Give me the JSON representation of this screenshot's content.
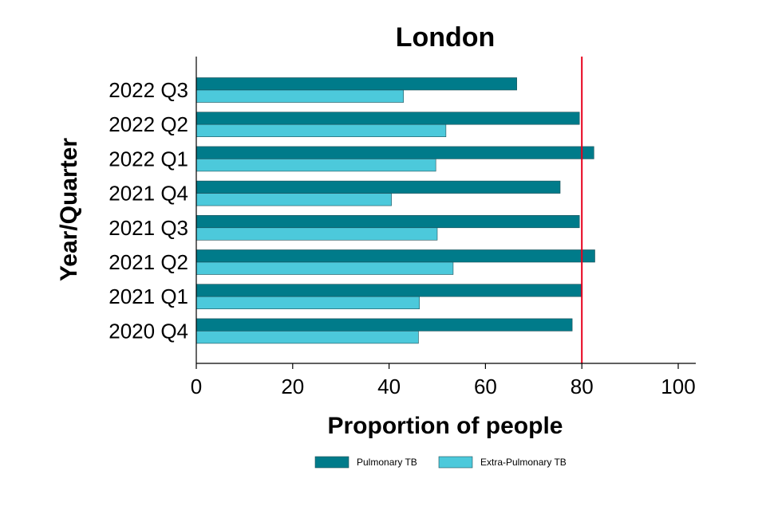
{
  "chart_data": {
    "type": "bar",
    "orientation": "horizontal",
    "title": "London",
    "xlabel": "Proportion of people",
    "ylabel": "Year/Quarter",
    "categories": [
      "2022 Q3",
      "2022 Q2",
      "2022 Q1",
      "2021 Q4",
      "2021 Q3",
      "2021 Q2",
      "2021 Q1",
      "2020 Q4"
    ],
    "series": [
      {
        "name": "Pulmonary TB",
        "color": "#007B8A",
        "values": [
          66.5,
          79.5,
          82.5,
          75.5,
          79.5,
          82.7,
          80.0,
          78.0
        ]
      },
      {
        "name": "Extra-Pulmonary TB",
        "color": "#4CC9DB",
        "values": [
          43.0,
          51.8,
          49.7,
          40.5,
          50.0,
          53.3,
          46.3,
          46.1
        ]
      }
    ],
    "xlim": [
      0,
      100
    ],
    "xticks": [
      0,
      20,
      40,
      60,
      80,
      100
    ],
    "reference_line": {
      "x": 80,
      "color": "#E8001C"
    },
    "grid": false,
    "legend_position": "bottom"
  }
}
